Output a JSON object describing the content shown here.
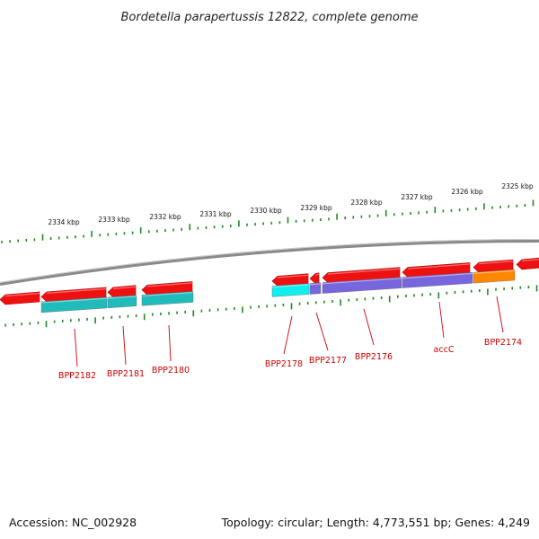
{
  "title": "Bordetella parapertussis 12822, complete genome",
  "footer": {
    "accession": "Accession: NC_002928",
    "stats": "Topology: circular; Length: 4,773,551 bp; Genes: 4,249"
  },
  "colors": {
    "backbone": "#8a8a8a",
    "tick": "#1e8a1e",
    "gene_label": "#cc0000",
    "cds_red": "#ee1111",
    "teal": "#22bbbb",
    "cyan": "#11eeee",
    "purple": "#7766dd",
    "orange": "#ff8800"
  },
  "scale_labels": [
    "2334 kbp",
    "2333 kbp",
    "2332 kbp",
    "2331 kbp",
    "2330 kbp",
    "2329 kbp",
    "2328 kbp",
    "2327 kbp",
    "2326 kbp",
    "2325 kbp"
  ],
  "genes": [
    {
      "name": "BPP2182",
      "strand": "-",
      "cog": "teal"
    },
    {
      "name": "BPP2181",
      "strand": "-",
      "cog": "teal"
    },
    {
      "name": "BPP2180",
      "strand": "-",
      "cog": "teal"
    },
    {
      "name": "BPP2178",
      "strand": "-",
      "cog": "cyan"
    },
    {
      "name": "BPP2177",
      "strand": "-",
      "cog": "purple"
    },
    {
      "name": "BPP2176",
      "strand": "-",
      "cog": "purple"
    },
    {
      "name": "accC",
      "strand": "-",
      "cog": "purple"
    },
    {
      "name": "BPP2174",
      "strand": "-",
      "cog": "orange"
    }
  ]
}
